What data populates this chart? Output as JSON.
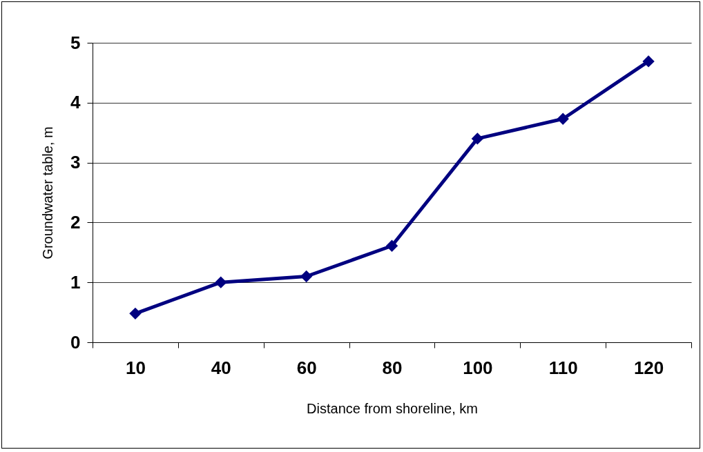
{
  "chart_data": {
    "type": "line",
    "xlabel": "Distance from shoreline, km",
    "ylabel": "Groundwater table, m",
    "categories": [
      "10",
      "40",
      "60",
      "80",
      "100",
      "110",
      "120"
    ],
    "series": [
      {
        "color": "#000080",
        "values": [
          0.48,
          1.0,
          1.1,
          1.61,
          3.4,
          3.73,
          4.69
        ]
      }
    ],
    "ylim": [
      0,
      5
    ],
    "yticks": [
      0,
      1,
      2,
      3,
      4,
      5
    ],
    "grid": "y",
    "marker": "diamond",
    "line_style": "solid",
    "legend": false
  }
}
